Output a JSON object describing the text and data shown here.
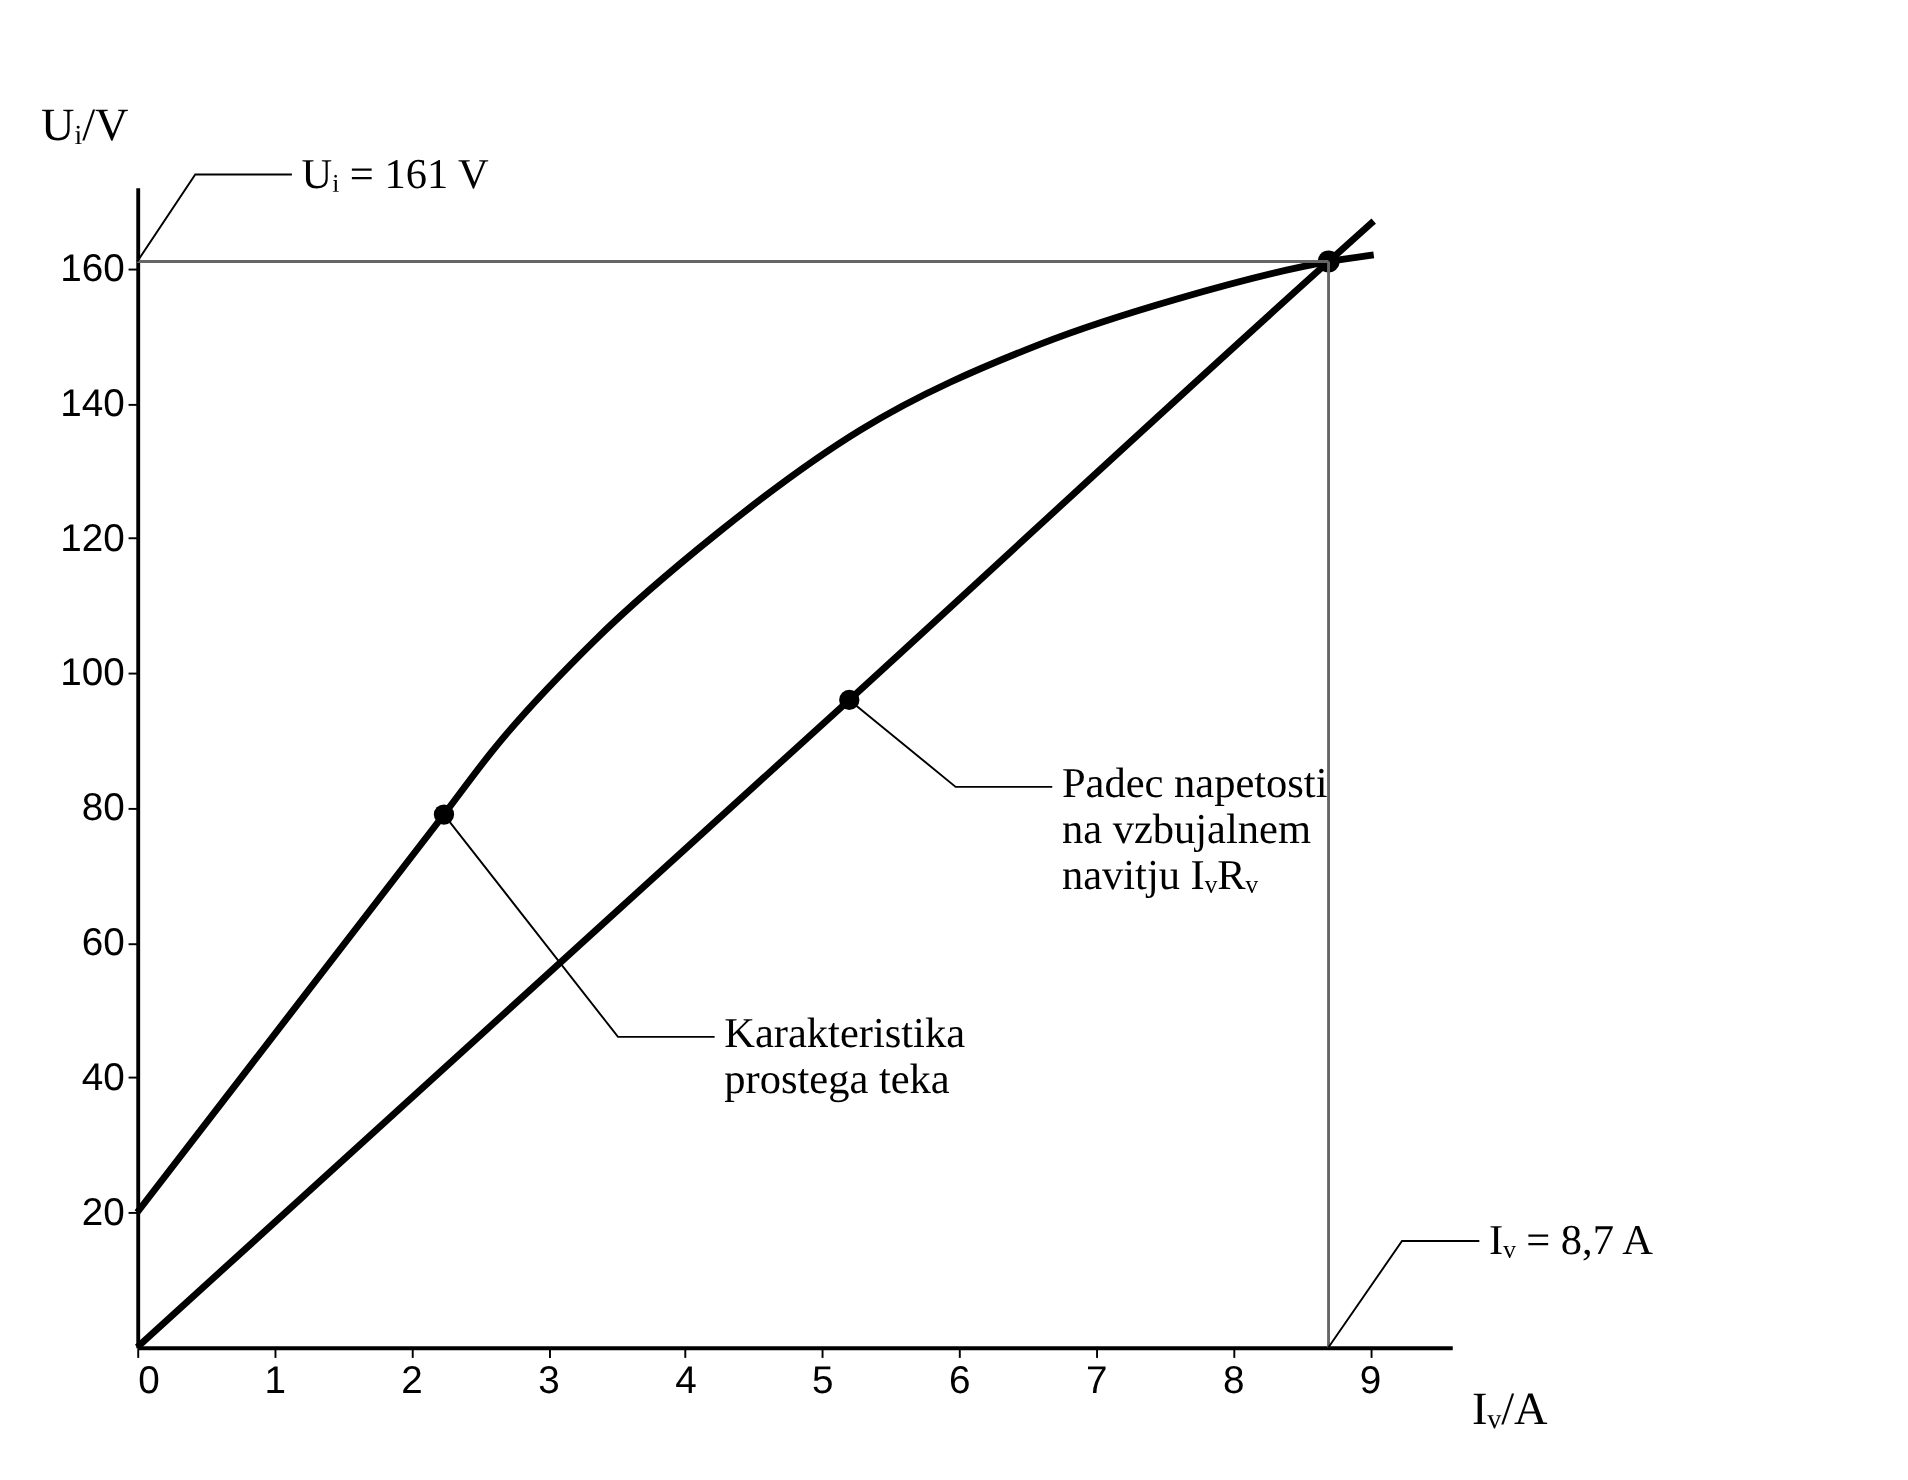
{
  "chart_data": {
    "type": "line",
    "xlabel": "Iᵥ/A",
    "ylabel": "Uᵢ/V",
    "xlim": [
      0,
      9.6
    ],
    "ylim": [
      0,
      172
    ],
    "xticks": [
      0,
      1,
      2,
      3,
      4,
      5,
      6,
      7,
      8,
      9
    ],
    "yticks": [
      20,
      40,
      60,
      80,
      100,
      120,
      140,
      160
    ],
    "grid": false,
    "legend": false,
    "marker": "none",
    "line_style": "solid",
    "series": [
      {
        "color": "#000000",
        "x": [
          0,
          2.24,
          2.6,
          3.34,
          4.23,
          5.28,
          6.6,
          7.6,
          8.7,
          9.03
        ],
        "values": [
          20,
          79,
          88.6,
          104.8,
          120.6,
          136,
          148.8,
          155.5,
          161,
          162
        ]
      },
      {
        "color": "#000000",
        "x": [
          0,
          5.2,
          8.7,
          9.03
        ],
        "values": [
          0,
          96,
          161,
          167
        ]
      },
      {
        "type": "scatter",
        "marker": "circle",
        "color": "#000000",
        "x": [
          8.7
        ],
        "values": [
          161
        ]
      }
    ],
    "ref_lines": [
      {
        "axis": "y",
        "value": 161,
        "label": "Uᵢ = 161 V",
        "color": "#666666"
      },
      {
        "axis": "x",
        "value": 8.7,
        "label": "Iᵥ = 8,7 A",
        "color": "#666666"
      }
    ],
    "annotations": [
      {
        "text": "Karakteristika\nprostega teka",
        "x": 2.24,
        "y": 79
      },
      {
        "text": "Padec napetosti\nna vzbujalnem\nnavitju IᵥRᵥ",
        "x": 5.2,
        "y": 96
      }
    ]
  }
}
